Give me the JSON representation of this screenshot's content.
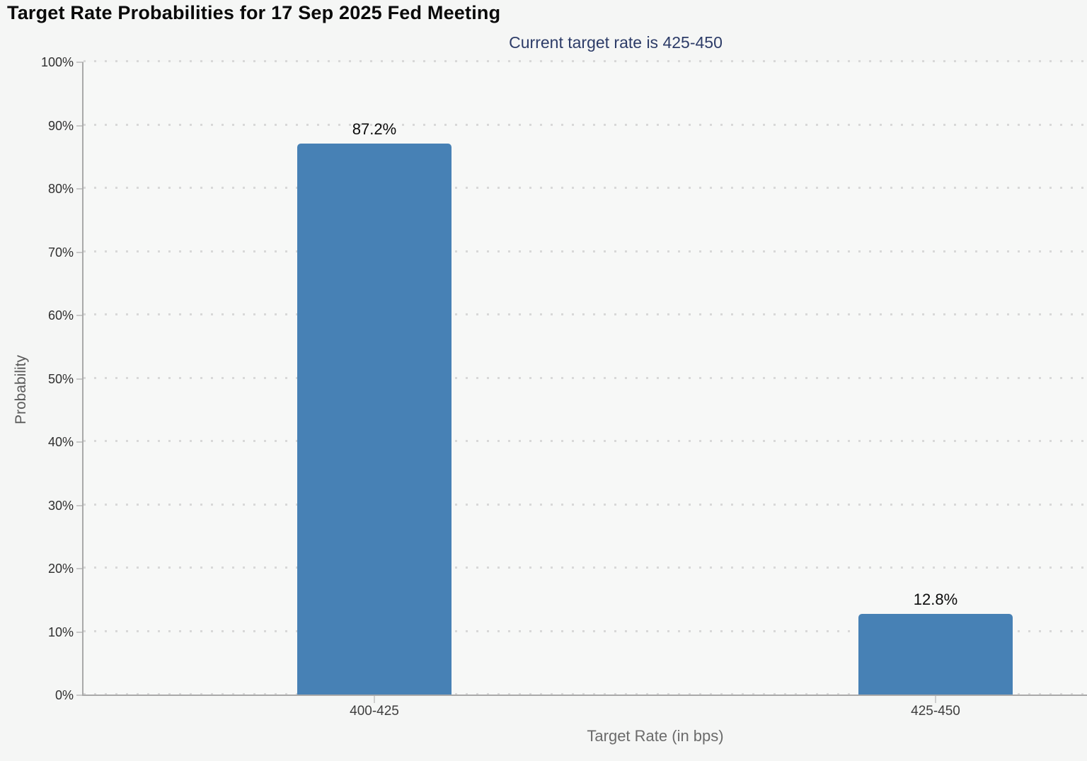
{
  "page": {
    "title": "Target Rate Probabilities for 17 Sep 2025 Fed Meeting",
    "subtitle": "Current target rate is 425-450"
  },
  "chart_data": {
    "type": "bar",
    "title": "Target Rate Probabilities for 17 Sep 2025 Fed Meeting",
    "subtitle": "Current target rate is 425-450",
    "categories": [
      "400-425",
      "425-450"
    ],
    "values": [
      87.2,
      12.8
    ],
    "value_labels": [
      "87.2%",
      "12.8%"
    ],
    "xlabel": "Target Rate (in bps)",
    "ylabel": "Probability",
    "ylim": [
      0,
      100
    ],
    "ytick_step": 10,
    "ytick_suffix": "%",
    "grid": "dotted-horizontal",
    "legend": "none"
  },
  "colors": {
    "bar": "#4781b5",
    "subtitle_text": "#2d3c68",
    "title_text": "#0a0a0a",
    "axis_line": "#a9a9a9",
    "gridline": "#d8d8d8",
    "background": "#f5f6f5"
  }
}
